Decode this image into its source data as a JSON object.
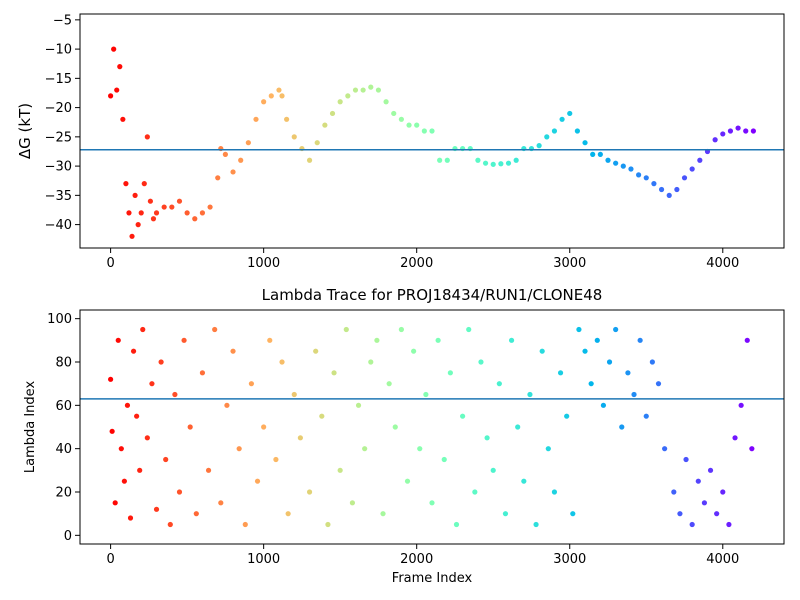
{
  "chart_data": [
    {
      "type": "scatter",
      "title": "",
      "xlabel": "",
      "ylabel": "ΔG (kT)",
      "xlim": [
        -200,
        4400
      ],
      "ylim": [
        -44,
        -4
      ],
      "xticks": [
        0,
        1000,
        2000,
        3000,
        4000
      ],
      "yticks": [
        -40,
        -35,
        -30,
        -25,
        -20,
        -15,
        -10,
        -5
      ],
      "hline": -27.2,
      "hline_color": "#1f77b4",
      "colormap": "rainbow (red at start to violet at end)",
      "series": [
        {
          "x": [
            0,
            20,
            40,
            60,
            80,
            100,
            120,
            140,
            160,
            180,
            200,
            220,
            240,
            260,
            280,
            300,
            350,
            400,
            450,
            500,
            550,
            600,
            650,
            700,
            720,
            750,
            800,
            850,
            900,
            950,
            1000,
            1050,
            1100,
            1120,
            1150,
            1200,
            1250,
            1300,
            1350,
            1400,
            1450,
            1500,
            1550,
            1600,
            1650,
            1700,
            1750,
            1800,
            1850,
            1900,
            1950,
            2000,
            2050,
            2100,
            2150,
            2200,
            2250,
            2300,
            2350,
            2400,
            2450,
            2500,
            2550,
            2600,
            2650,
            2700,
            2750,
            2800,
            2850,
            2900,
            2950,
            3000,
            3050,
            3100,
            3150,
            3200,
            3250,
            3300,
            3350,
            3400,
            3450,
            3500,
            3550,
            3600,
            3650,
            3700,
            3750,
            3800,
            3850,
            3900,
            3950,
            4000,
            4050,
            4100,
            4150,
            4200
          ],
          "y": [
            -18,
            -10,
            -17,
            -13,
            -22,
            -33,
            -38,
            -42,
            -35,
            -40,
            -38,
            -33,
            -25,
            -36,
            -39,
            -38,
            -37,
            -37,
            -36,
            -38,
            -39,
            -38,
            -37,
            -32,
            -27,
            -28,
            -31,
            -29,
            -26,
            -22,
            -19,
            -18,
            -17,
            -18,
            -22,
            -25,
            -27,
            -29,
            -26,
            -23,
            -21,
            -19,
            -18,
            -17,
            -17,
            -16.5,
            -17,
            -19,
            -21,
            -22,
            -23,
            -23,
            -24,
            -24,
            -29,
            -29,
            -27,
            -27,
            -27,
            -29,
            -29.5,
            -29.7,
            -29.6,
            -29.5,
            -29,
            -27,
            -27,
            -26.5,
            -25,
            -24,
            -22,
            -21,
            -24,
            -26,
            -28,
            -28,
            -29,
            -29.5,
            -30,
            -30.5,
            -31.5,
            -32,
            -33,
            -34,
            -35,
            -34,
            -32,
            -30.5,
            -29,
            -27.5,
            -25.5,
            -24.5,
            -24,
            -23.5,
            -24,
            -24
          ]
        }
      ]
    },
    {
      "type": "scatter",
      "title": "Lambda Trace for PROJ18434/RUN1/CLONE48",
      "xlabel": "Frame Index",
      "ylabel": "Lambda Index",
      "xlim": [
        -200,
        4400
      ],
      "ylim": [
        -4,
        104
      ],
      "xticks": [
        0,
        1000,
        2000,
        3000,
        4000
      ],
      "yticks": [
        0,
        20,
        40,
        60,
        80,
        100
      ],
      "hline": 63,
      "hline_color": "#1f77b4",
      "colormap": "rainbow (red at start to violet at end)",
      "series": [
        {
          "x": [
            0,
            10,
            30,
            50,
            70,
            90,
            110,
            130,
            150,
            170,
            190,
            210,
            240,
            270,
            300,
            330,
            360,
            390,
            420,
            450,
            480,
            520,
            560,
            600,
            640,
            680,
            720,
            760,
            800,
            840,
            880,
            920,
            960,
            1000,
            1040,
            1080,
            1120,
            1160,
            1200,
            1240,
            1300,
            1340,
            1380,
            1420,
            1460,
            1500,
            1540,
            1580,
            1620,
            1660,
            1700,
            1740,
            1780,
            1820,
            1860,
            1900,
            1940,
            1980,
            2020,
            2060,
            2100,
            2140,
            2180,
            2220,
            2260,
            2300,
            2340,
            2380,
            2420,
            2460,
            2500,
            2540,
            2580,
            2620,
            2660,
            2700,
            2740,
            2780,
            2820,
            2860,
            2900,
            2940,
            2980,
            3020,
            3060,
            3100,
            3140,
            3180,
            3220,
            3260,
            3300,
            3340,
            3380,
            3420,
            3460,
            3500,
            3540,
            3580,
            3620,
            3680,
            3720,
            3760,
            3800,
            3840,
            3880,
            3920,
            3960,
            4000,
            4040,
            4080,
            4120,
            4160,
            4190
          ],
          "y": [
            72,
            48,
            15,
            90,
            40,
            25,
            60,
            8,
            85,
            55,
            30,
            95,
            45,
            70,
            12,
            80,
            35,
            5,
            65,
            20,
            90,
            50,
            10,
            75,
            30,
            95,
            15,
            60,
            85,
            40,
            5,
            70,
            25,
            50,
            90,
            35,
            80,
            10,
            65,
            45,
            20,
            85,
            55,
            5,
            75,
            30,
            95,
            15,
            60,
            40,
            80,
            90,
            10,
            70,
            50,
            95,
            25,
            85,
            40,
            65,
            15,
            90,
            35,
            75,
            5,
            55,
            95,
            20,
            80,
            45,
            30,
            70,
            10,
            90,
            50,
            25,
            65,
            5,
            85,
            40,
            20,
            75,
            55,
            10,
            95,
            85,
            70,
            90,
            60,
            80,
            95,
            50,
            75,
            65,
            90,
            55,
            80,
            70,
            40,
            20,
            10,
            35,
            5,
            25,
            15,
            30,
            10,
            20,
            5,
            45,
            60,
            90,
            40
          ]
        }
      ]
    }
  ]
}
